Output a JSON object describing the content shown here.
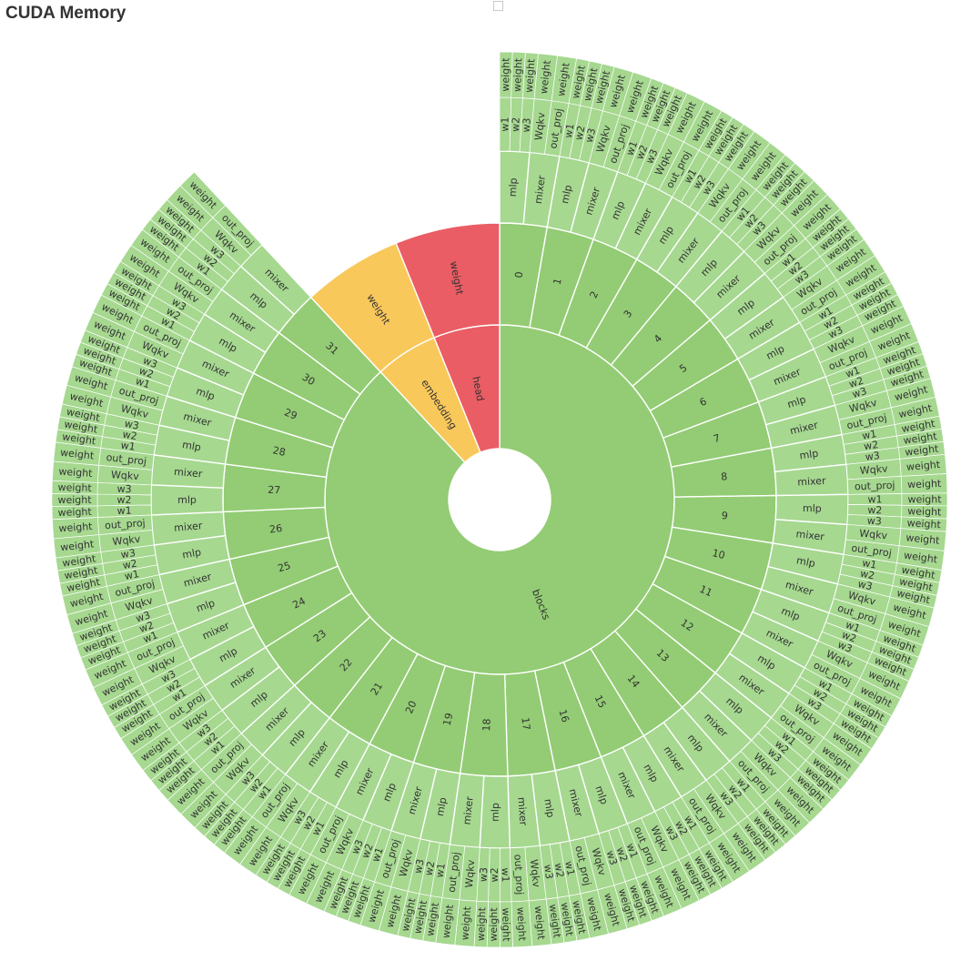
{
  "title": "CUDA Memory",
  "colors": {
    "blocks": "#93cc74",
    "blocks_outer": "#a6d890",
    "embedding": "#f9c85a",
    "embedding_outer": "#facd69",
    "head": "#ea5d64",
    "head_outer": "#ed7278"
  },
  "chart_data": {
    "type": "sunburst",
    "title": "CUDA Memory",
    "root": [
      {
        "name": "blocks",
        "block_labels": [
          "0",
          "1",
          "2",
          "3",
          "4",
          "5",
          "6",
          "7",
          "8",
          "9",
          "10",
          "11",
          "12",
          "13",
          "14",
          "15",
          "16",
          "17",
          "18",
          "19",
          "20",
          "21",
          "22",
          "23",
          "24",
          "25",
          "26",
          "27",
          "28",
          "29",
          "30",
          "31"
        ],
        "block_children": [
          {
            "name": "mlp",
            "children": [
              {
                "name": "w1",
                "children": [
                  {
                    "name": "weight"
                  }
                ]
              },
              {
                "name": "w2",
                "children": [
                  {
                    "name": "weight"
                  }
                ]
              },
              {
                "name": "w3",
                "children": [
                  {
                    "name": "weight"
                  }
                ]
              }
            ]
          },
          {
            "name": "mixer",
            "children": [
              {
                "name": "Wqkv",
                "children": [
                  {
                    "name": "weight"
                  }
                ]
              },
              {
                "name": "out_proj",
                "children": [
                  {
                    "name": "weight"
                  }
                ]
              }
            ]
          }
        ]
      },
      {
        "name": "embedding",
        "children": [
          {
            "name": "weight"
          }
        ]
      },
      {
        "name": "head",
        "children": [
          {
            "name": "weight"
          }
        ]
      }
    ]
  }
}
